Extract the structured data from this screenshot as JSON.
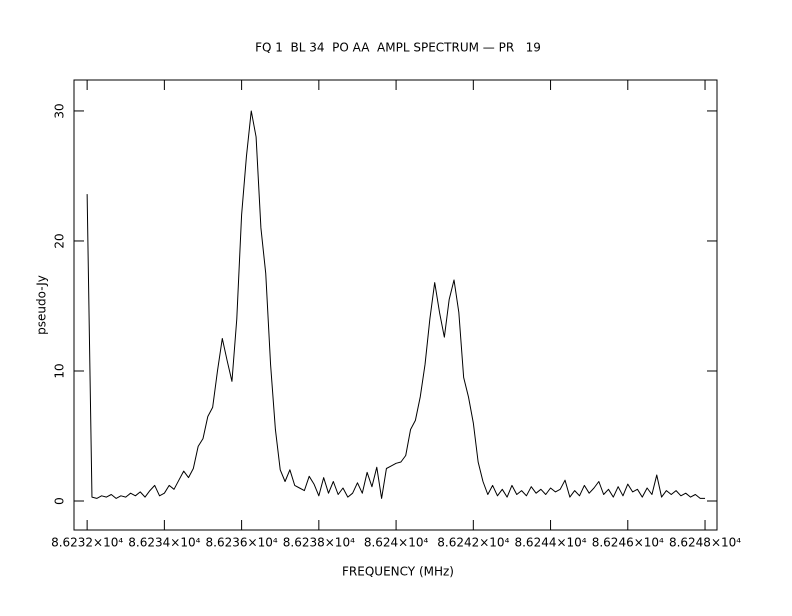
{
  "chart_data": {
    "type": "line",
    "title": "FQ 1  BL 34  PO AA  AMPL SPECTRUM — PR   19",
    "x_label": "FREQUENCY (MHz)",
    "y_label": "pseudo-Jy",
    "color": "#000000",
    "xlim": [
      86231.66,
      86248.31
    ],
    "ylim": [
      -2.23,
      32.38
    ],
    "xticks": [
      {
        "value": 86232,
        "label": "8.6232×10⁴"
      },
      {
        "value": 86234,
        "label": "8.6234×10⁴"
      },
      {
        "value": 86236,
        "label": "8.6236×10⁴"
      },
      {
        "value": 86238,
        "label": "8.6238×10⁴"
      },
      {
        "value": 86240,
        "label": "8.624×10⁴"
      },
      {
        "value": 86242,
        "label": "8.6242×10⁴"
      },
      {
        "value": 86244,
        "label": "8.6244×10⁴"
      },
      {
        "value": 86246,
        "label": "8.6246×10⁴"
      },
      {
        "value": 86248,
        "label": "8.6248×10⁴"
      }
    ],
    "yticks": [
      0,
      10,
      20,
      30
    ],
    "x": [
      86232,
      86232.125,
      86232.25,
      86232.375,
      86232.5,
      86232.625,
      86232.75,
      86232.875,
      86233,
      86233.125,
      86233.25,
      86233.375,
      86233.5,
      86233.625,
      86233.75,
      86233.875,
      86234,
      86234.125,
      86234.25,
      86234.375,
      86234.5,
      86234.625,
      86234.75,
      86234.875,
      86235,
      86235.125,
      86235.25,
      86235.375,
      86235.5,
      86235.625,
      86235.75,
      86235.875,
      86236,
      86236.125,
      86236.25,
      86236.375,
      86236.5,
      86236.625,
      86236.75,
      86236.875,
      86237,
      86237.125,
      86237.25,
      86237.375,
      86237.5,
      86237.625,
      86237.75,
      86237.875,
      86238,
      86238.125,
      86238.25,
      86238.375,
      86238.5,
      86238.625,
      86238.75,
      86238.875,
      86239,
      86239.125,
      86239.25,
      86239.375,
      86239.5,
      86239.625,
      86239.75,
      86239.875,
      86240,
      86240.125,
      86240.25,
      86240.375,
      86240.5,
      86240.625,
      86240.75,
      86240.875,
      86241,
      86241.125,
      86241.25,
      86241.375,
      86241.5,
      86241.625,
      86241.75,
      86241.875,
      86242,
      86242.125,
      86242.25,
      86242.375,
      86242.5,
      86242.625,
      86242.75,
      86242.875,
      86243,
      86243.125,
      86243.25,
      86243.375,
      86243.5,
      86243.625,
      86243.75,
      86243.875,
      86244,
      86244.125,
      86244.25,
      86244.375,
      86244.5,
      86244.625,
      86244.75,
      86244.875,
      86245,
      86245.125,
      86245.25,
      86245.375,
      86245.5,
      86245.625,
      86245.75,
      86245.875,
      86246,
      86246.125,
      86246.25,
      86246.375,
      86246.5,
      86246.625,
      86246.75,
      86246.875,
      86247,
      86247.125,
      86247.25,
      86247.375,
      86247.5,
      86247.625,
      86247.75,
      86247.875,
      86248
    ],
    "values": [
      23.6,
      0.3,
      0.2,
      0.4,
      0.3,
      0.5,
      0.2,
      0.4,
      0.3,
      0.6,
      0.4,
      0.7,
      0.3,
      0.8,
      1.2,
      0.4,
      0.6,
      1.2,
      0.9,
      1.6,
      2.3,
      1.8,
      2.5,
      4.2,
      4.8,
      6.5,
      7.2,
      10.0,
      12.5,
      10.8,
      9.2,
      14.0,
      22.0,
      26.5,
      30.0,
      28.0,
      21.0,
      17.5,
      10.5,
      5.5,
      2.4,
      1.5,
      2.4,
      1.2,
      1.0,
      0.8,
      1.9,
      1.3,
      0.4,
      1.8,
      0.6,
      1.5,
      0.5,
      1.0,
      0.3,
      0.6,
      1.4,
      0.6,
      2.2,
      1.1,
      2.6,
      0.2,
      2.5,
      2.7,
      2.9,
      3.0,
      3.5,
      5.5,
      6.2,
      8.0,
      10.5,
      14.0,
      16.8,
      14.5,
      12.6,
      15.5,
      17.0,
      14.5,
      9.5,
      8.0,
      6.0,
      3.0,
      1.5,
      0.5,
      1.2,
      0.4,
      0.9,
      0.3,
      1.2,
      0.5,
      0.8,
      0.4,
      1.1,
      0.6,
      0.9,
      0.5,
      1.0,
      0.7,
      0.9,
      1.6,
      0.3,
      0.8,
      0.4,
      1.2,
      0.6,
      1.0,
      1.5,
      0.5,
      0.9,
      0.3,
      1.1,
      0.4,
      1.3,
      0.7,
      0.9,
      0.3,
      1.0,
      0.5,
      2.0,
      0.3,
      0.8,
      0.5,
      0.8,
      0.4,
      0.6,
      0.3,
      0.5,
      0.2,
      0.2
    ]
  }
}
